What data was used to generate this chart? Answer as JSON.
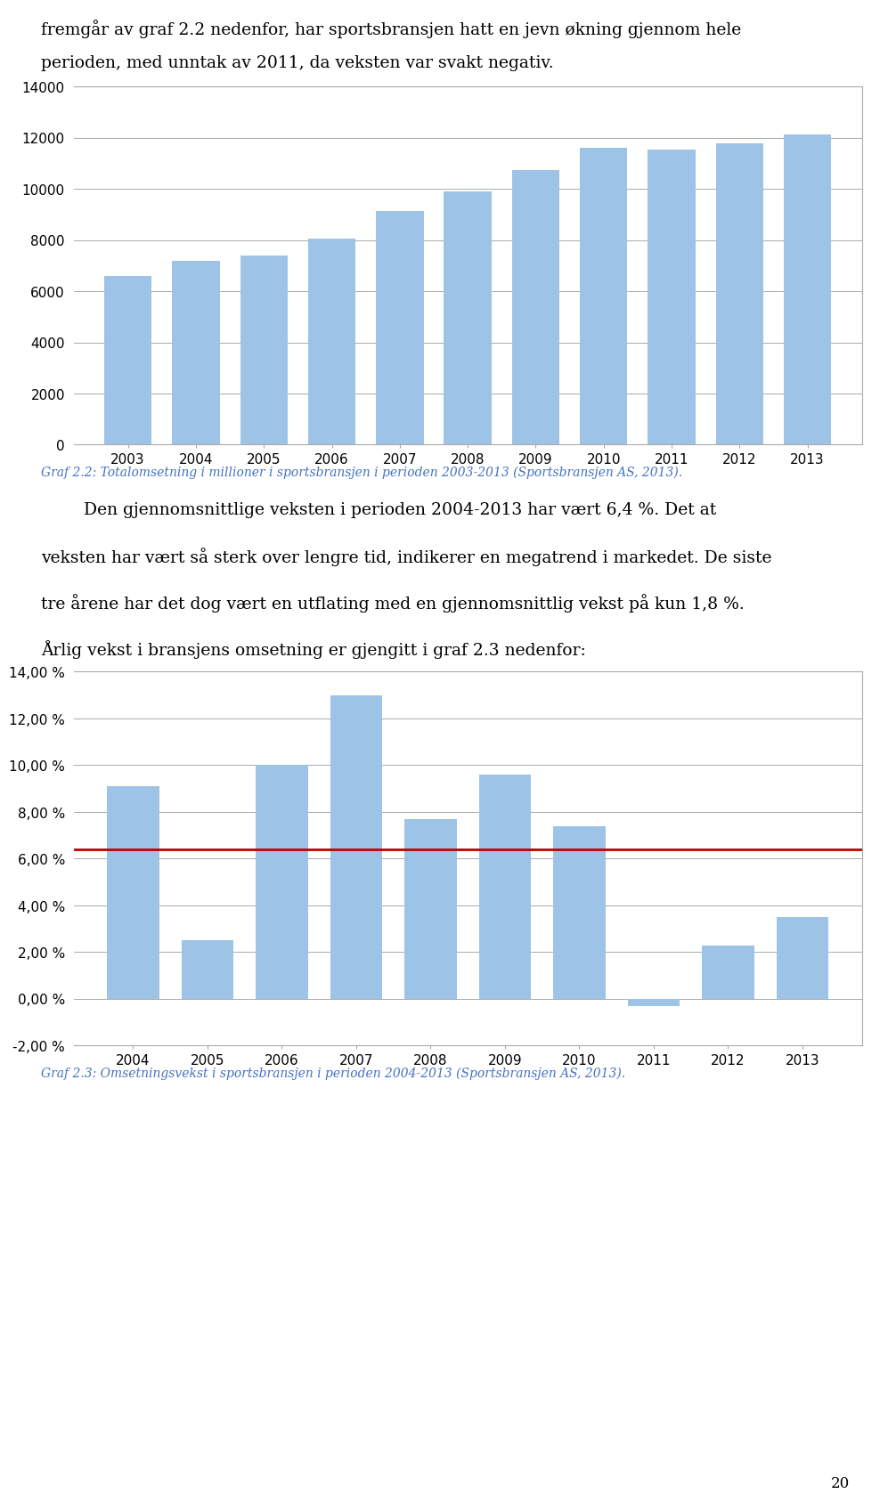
{
  "chart1": {
    "years": [
      2003,
      2004,
      2005,
      2006,
      2007,
      2008,
      2009,
      2010,
      2011,
      2012,
      2013
    ],
    "values": [
      6600,
      7200,
      7400,
      8050,
      9150,
      9900,
      10750,
      11600,
      11550,
      11800,
      12150
    ],
    "bar_color": "#9DC3E6",
    "ylim": [
      0,
      14000
    ],
    "yticks": [
      0,
      2000,
      4000,
      6000,
      8000,
      10000,
      12000,
      14000
    ],
    "caption": "Graf 2.2: Totalomsetning i millioner i sportsbransjen i perioden 2003-2013 (Sportsbransjen AS, 2013)."
  },
  "chart2": {
    "years": [
      2004,
      2005,
      2006,
      2007,
      2008,
      2009,
      2010,
      2011,
      2012,
      2013
    ],
    "values": [
      0.091,
      0.025,
      0.1,
      0.13,
      0.077,
      0.096,
      0.074,
      -0.003,
      0.023,
      0.035
    ],
    "bar_color": "#9DC3E6",
    "avg_line": 0.064,
    "avg_line_color": "#C00000",
    "ylim": [
      -0.02,
      0.14
    ],
    "yticks": [
      -0.02,
      0.0,
      0.02,
      0.04,
      0.06,
      0.08,
      0.1,
      0.12,
      0.14
    ],
    "ytick_labels": [
      "-2,00 %",
      "0,00 %",
      "2,00 %",
      "4,00 %",
      "6,00 %",
      "8,00 %",
      "10,00 %",
      "12,00 %",
      "14,00 %"
    ],
    "caption": "Graf 2.3: Omsetningsvekst i sportsbransjen i perioden 2004-2013 (Sportsbransjen AS, 2013)."
  },
  "intro_line1": "fremgår av graf 2.2 nedenfor, har sportsbransjen hatt en jevn økning gjennom hele",
  "intro_line2": "perioden, med unntak av 2011, da veksten var svakt negativ.",
  "para_line1": "        Den gjennomsnittlige veksten i perioden 2004-2013 har vært 6,4 %. Det at",
  "para_line2": "veksten har vært så sterk over lengre tid, indikerer en megatrend i markedet. De siste",
  "para_line3": "tre årene har det dog vært en utflating med en gjennomsnittlig vekst på kun 1,8 %.",
  "para_line4": "Årlig vekst i bransjens omsetning er gjengitt i graf 2.3 nedenfor:",
  "page_number": "20",
  "background_color": "#FFFFFF",
  "text_color": "#000000",
  "caption_color": "#4472C4",
  "bar_border_color": "#AAAAAA",
  "grid_color": "#AAAAAA"
}
